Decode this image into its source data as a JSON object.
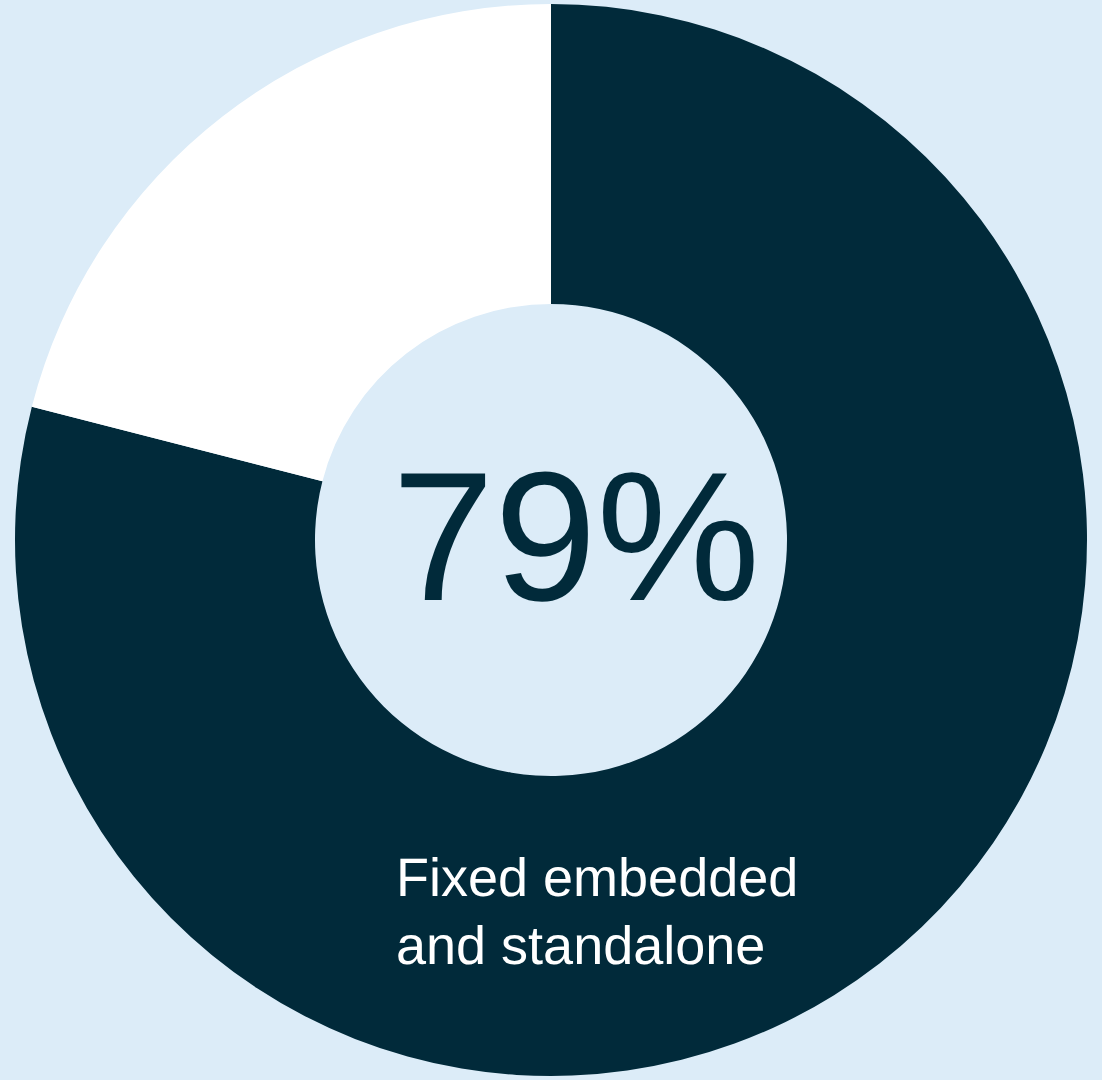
{
  "chart_data": {
    "type": "donut",
    "categories": [
      "Fixed embedded and standalone",
      null
    ],
    "values": [
      79,
      21
    ],
    "colors": [
      "#012a3a",
      "#ffffff"
    ],
    "value_labels": [
      "79%",
      null
    ]
  }
}
